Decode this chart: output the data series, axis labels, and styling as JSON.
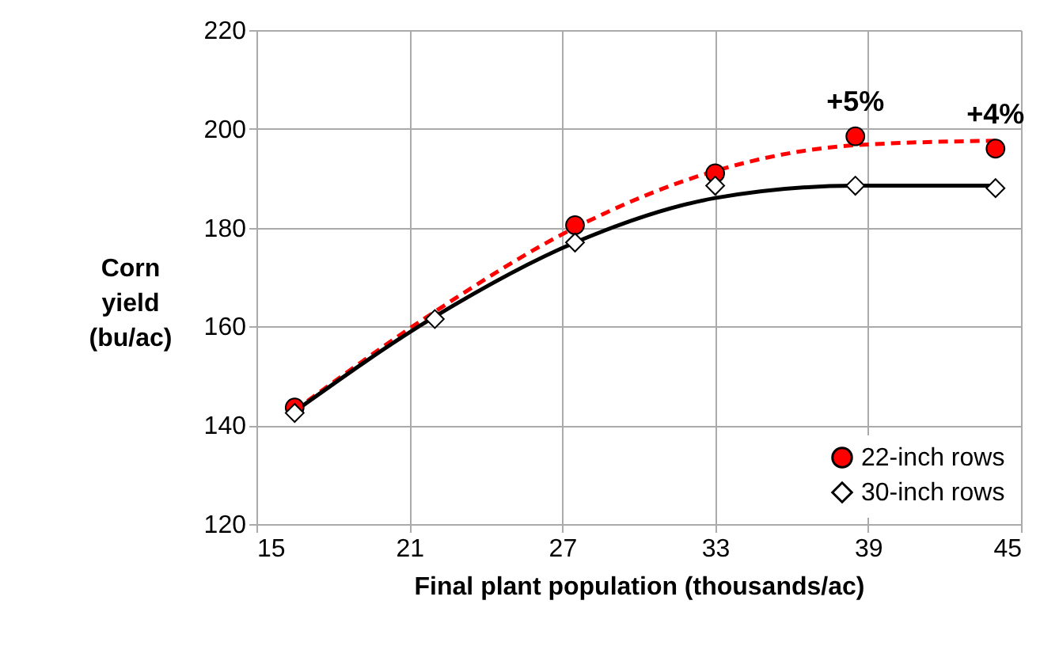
{
  "chart_data": {
    "type": "scatter",
    "xlabel": "Final plant population (thousands/ac)",
    "ylabel": "Corn yield (bu/ac)",
    "xlim": [
      15,
      45
    ],
    "xticks": [
      15,
      21,
      27,
      33,
      39,
      45
    ],
    "ylim": [
      120,
      220
    ],
    "yticks": [
      120,
      140,
      160,
      180,
      200,
      220
    ],
    "grid": true,
    "legend": "bottom right",
    "series": [
      {
        "type": "line",
        "color": "#ff0000",
        "line_style": "dashed",
        "marker": "none",
        "x": [
          16.5,
          22,
          27.5,
          33,
          38.5,
          44
        ],
        "values": [
          143,
          163,
          180,
          191.5,
          196.7,
          197.6
        ]
      },
      {
        "type": "line",
        "color": "#000000",
        "line_style": "solid",
        "marker": "none",
        "x": [
          16.5,
          22,
          27.5,
          33,
          38.5,
          44
        ],
        "values": [
          142.8,
          162,
          177,
          186,
          188.5,
          188.5
        ]
      },
      {
        "name": "22-inch rows",
        "color": "#ff0000",
        "marker": "circle",
        "x": [
          16.5,
          27.5,
          33,
          38.5,
          44
        ],
        "values": [
          143.6,
          180.5,
          191,
          198.5,
          196
        ]
      },
      {
        "name": "30-inch rows",
        "color": "#ffffff",
        "marker": "diamond",
        "x": [
          16.5,
          22,
          27.5,
          33,
          38.5,
          44
        ],
        "values": [
          142.5,
          161.5,
          177,
          188.5,
          188.5,
          188
        ]
      }
    ],
    "annotations": [
      {
        "text": "+5%",
        "x": 38.5,
        "y": 198.5
      },
      {
        "text": "+4%",
        "x": 44,
        "y": 196
      }
    ]
  }
}
